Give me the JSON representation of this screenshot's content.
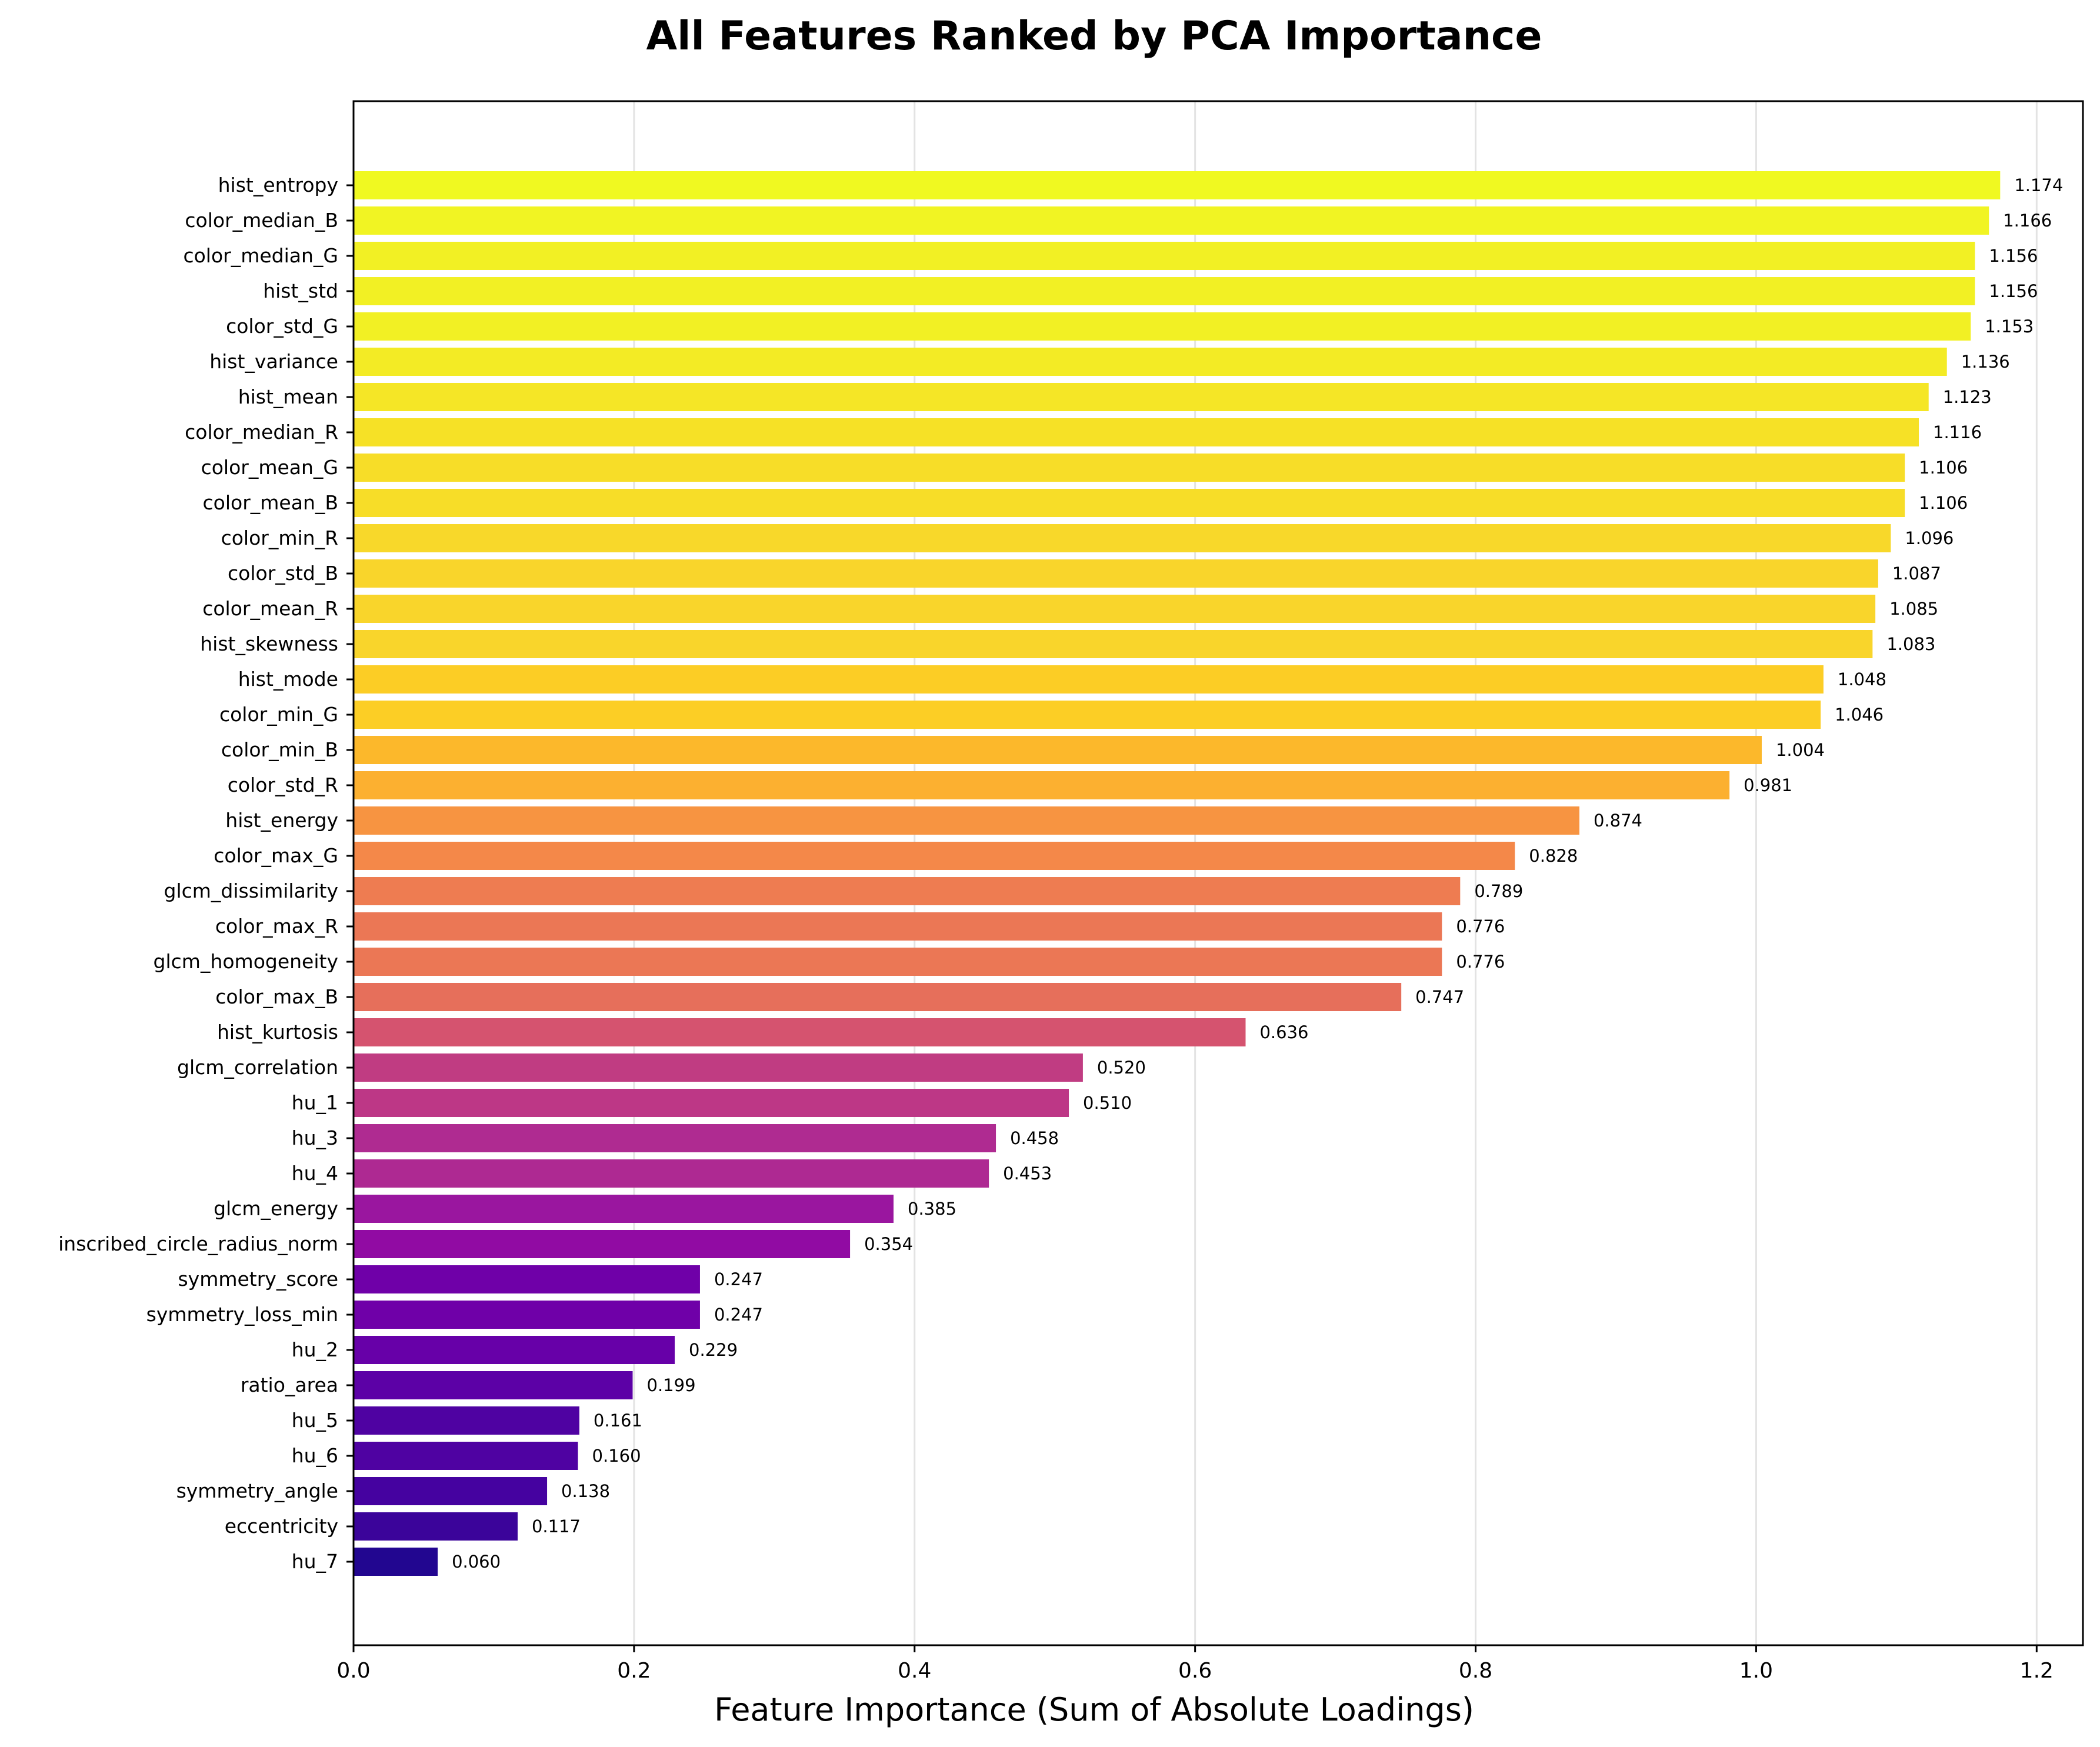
{
  "chart_data": {
    "type": "bar",
    "orientation": "horizontal",
    "title": "All Features Ranked by PCA Importance",
    "xlabel": "Feature Importance (Sum of Absolute Loadings)",
    "ylabel": "",
    "xlim": [
      0,
      1.233
    ],
    "xticks": [
      0.0,
      0.2,
      0.4,
      0.6,
      0.8,
      1.0,
      1.2
    ],
    "xtick_labels": [
      "0.0",
      "0.2",
      "0.4",
      "0.6",
      "0.8",
      "1.0",
      "1.2"
    ],
    "grid": "vertical",
    "legend": "none",
    "colormap": "plasma",
    "categories": [
      "hist_entropy",
      "color_median_B",
      "color_median_G",
      "hist_std",
      "color_std_G",
      "hist_variance",
      "hist_mean",
      "color_median_R",
      "color_mean_G",
      "color_mean_B",
      "color_min_R",
      "color_std_B",
      "color_mean_R",
      "hist_skewness",
      "hist_mode",
      "color_min_G",
      "color_min_B",
      "color_std_R",
      "hist_energy",
      "color_max_G",
      "glcm_dissimilarity",
      "color_max_R",
      "glcm_homogeneity",
      "color_max_B",
      "hist_kurtosis",
      "glcm_correlation",
      "hu_1",
      "hu_3",
      "hu_4",
      "glcm_energy",
      "inscribed_circle_radius_norm",
      "symmetry_score",
      "symmetry_loss_min",
      "hu_2",
      "ratio_area",
      "hu_5",
      "hu_6",
      "symmetry_angle",
      "eccentricity",
      "hu_7"
    ],
    "values": [
      1.174,
      1.166,
      1.156,
      1.156,
      1.153,
      1.136,
      1.123,
      1.116,
      1.106,
      1.106,
      1.096,
      1.087,
      1.085,
      1.083,
      1.048,
      1.046,
      1.004,
      0.981,
      0.874,
      0.828,
      0.789,
      0.776,
      0.776,
      0.747,
      0.636,
      0.52,
      0.51,
      0.458,
      0.453,
      0.385,
      0.354,
      0.247,
      0.247,
      0.229,
      0.199,
      0.161,
      0.16,
      0.138,
      0.117,
      0.06
    ],
    "value_labels": [
      "1.174",
      "1.166",
      "1.156",
      "1.156",
      "1.153",
      "1.136",
      "1.123",
      "1.116",
      "1.106",
      "1.106",
      "1.096",
      "1.087",
      "1.085",
      "1.083",
      "1.048",
      "1.046",
      "1.004",
      "0.981",
      "0.874",
      "0.828",
      "0.789",
      "0.776",
      "0.776",
      "0.747",
      "0.636",
      "0.520",
      "0.510",
      "0.458",
      "0.453",
      "0.385",
      "0.354",
      "0.247",
      "0.247",
      "0.229",
      "0.199",
      "0.161",
      "0.160",
      "0.138",
      "0.117",
      "0.060"
    ],
    "colors": [
      "#f0f921",
      "#f1f423",
      "#f2f024",
      "#f2f024",
      "#f2f024",
      "#f3eb25",
      "#f5e626",
      "#f6e126",
      "#f7dd28",
      "#f7dd28",
      "#f8d82a",
      "#f9d52b",
      "#f9d52b",
      "#f9d52b",
      "#fccd25",
      "#fcce25",
      "#fcb82b",
      "#fcb030",
      "#f79441",
      "#f48849",
      "#ee7c51",
      "#eb7755",
      "#eb7755",
      "#e66f5b",
      "#d5536f",
      "#c03c82",
      "#bd3786",
      "#af2b91",
      "#ae2992",
      "#9a169f",
      "#910ba3",
      "#6f00a8",
      "#6f00a8",
      "#6700a8",
      "#5c01a6",
      "#4f02a2",
      "#4f02a2",
      "#4502a0",
      "#3b049a",
      "#220690"
    ]
  }
}
